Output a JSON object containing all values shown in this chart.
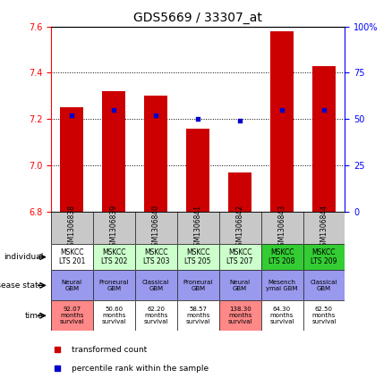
{
  "title": "GDS5669 / 33307_at",
  "samples": [
    "GSM1306838",
    "GSM1306839",
    "GSM1306840",
    "GSM1306841",
    "GSM1306842",
    "GSM1306843",
    "GSM1306844"
  ],
  "transformed_count": [
    7.25,
    7.32,
    7.3,
    7.16,
    6.97,
    7.58,
    7.43
  ],
  "percentile_rank": [
    52,
    55,
    52,
    50,
    49,
    55,
    55
  ],
  "ylim_left": [
    6.8,
    7.6
  ],
  "ylim_right": [
    0,
    100
  ],
  "yticks_left": [
    6.8,
    7.0,
    7.2,
    7.4,
    7.6
  ],
  "yticks_right": [
    0,
    25,
    50,
    75,
    100
  ],
  "bar_color": "#cc0000",
  "dot_color": "#0000cc",
  "bar_bottom": 6.8,
  "individual_labels": [
    "MSKCC\nLTS 201",
    "MSKCC\nLTS 202",
    "MSKCC\nLTS 203",
    "MSKCC\nLTS 205",
    "MSKCC\nLTS 207",
    "MSKCC\nLTS 208",
    "MSKCC\nLTS 209"
  ],
  "individual_colors": [
    "#ffffff",
    "#ccffcc",
    "#ccffcc",
    "#ccffcc",
    "#ccffcc",
    "#33cc33",
    "#33cc33"
  ],
  "disease_labels": [
    "Neural\nGBM",
    "Proneural\nGBM",
    "Classical\nGBM",
    "Proneural\nGBM",
    "Neural\nGBM",
    "Mesench\nymal GBM",
    "Classical\nGBM"
  ],
  "disease_colors": [
    "#9999ee",
    "#9999ee",
    "#9999ee",
    "#9999ee",
    "#9999ee",
    "#9999ee",
    "#9999ee"
  ],
  "time_labels": [
    "92.07\nmonths\nsurvival",
    "50.60\nmonths\nsurvival",
    "62.20\nmonths\nsurvival",
    "58.57\nmonths\nsurvival",
    "138.30\nmonths\nsurvival",
    "64.30\nmonths\nsurvival",
    "62.50\nmonths\nsurvival"
  ],
  "time_colors": [
    "#ff8888",
    "#ffffff",
    "#ffffff",
    "#ffffff",
    "#ff8888",
    "#ffffff",
    "#ffffff"
  ],
  "sample_bg_color": "#c8c8c8",
  "row_labels": [
    "individual",
    "disease state",
    "time"
  ],
  "legend_items": [
    {
      "label": "transformed count",
      "color": "#cc0000"
    },
    {
      "label": "percentile rank within the sample",
      "color": "#0000cc"
    }
  ]
}
